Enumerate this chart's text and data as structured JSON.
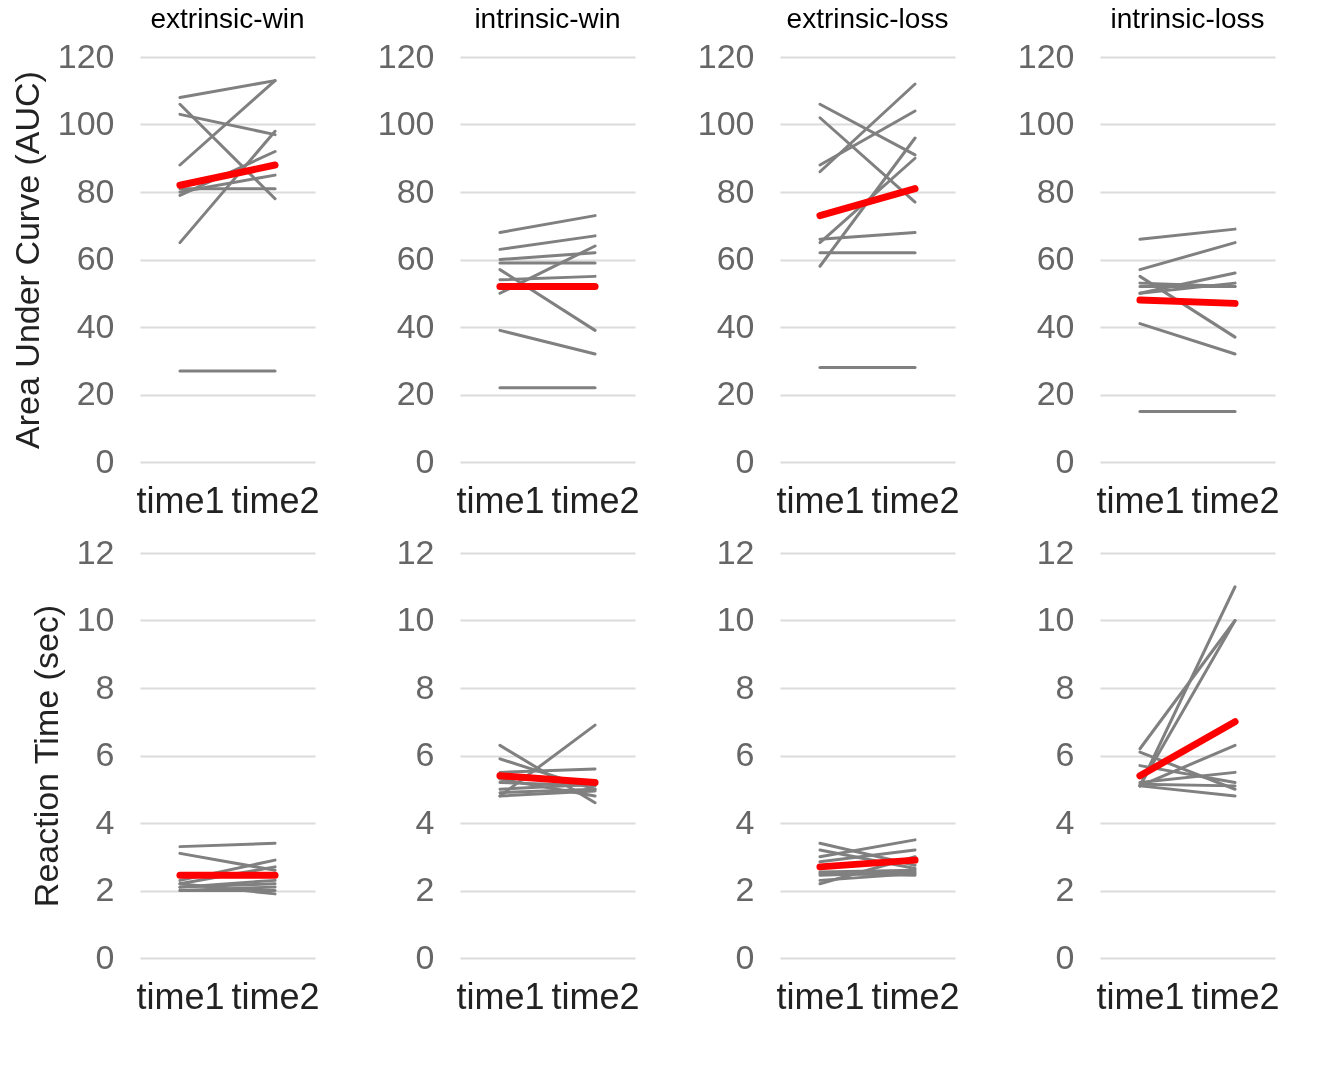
{
  "chart_data": [
    {
      "type": "line",
      "title": "extrinsic-win",
      "ylabel": "Area Under Curve (AUC)",
      "categories": [
        "time1",
        "time2"
      ],
      "ylim": [
        0,
        120
      ],
      "yticks": [
        0,
        20,
        40,
        60,
        80,
        100,
        120
      ],
      "grid": "y",
      "series": [
        {
          "color": "#808080",
          "values": [
            108,
            113
          ]
        },
        {
          "color": "#808080",
          "values": [
            106,
            78
          ]
        },
        {
          "color": "#808080",
          "values": [
            103,
            97
          ]
        },
        {
          "color": "#808080",
          "values": [
            88,
            113
          ]
        },
        {
          "color": "#808080",
          "values": [
            65,
            98
          ]
        },
        {
          "color": "#808080",
          "values": [
            79,
            92
          ]
        },
        {
          "color": "#808080",
          "values": [
            81,
            81
          ]
        },
        {
          "color": "#808080",
          "values": [
            80,
            85
          ]
        },
        {
          "color": "#808080",
          "values": [
            27,
            27
          ]
        },
        {
          "color": "#ff0000",
          "values": [
            82,
            88
          ]
        }
      ]
    },
    {
      "type": "line",
      "title": "intrinsic-win",
      "categories": [
        "time1",
        "time2"
      ],
      "ylim": [
        0,
        120
      ],
      "yticks": [
        0,
        20,
        40,
        60,
        80,
        100,
        120
      ],
      "grid": "y",
      "series": [
        {
          "color": "#808080",
          "values": [
            68,
            73
          ]
        },
        {
          "color": "#808080",
          "values": [
            63,
            67
          ]
        },
        {
          "color": "#808080",
          "values": [
            60,
            62
          ]
        },
        {
          "color": "#808080",
          "values": [
            59,
            59
          ]
        },
        {
          "color": "#808080",
          "values": [
            50,
            64
          ]
        },
        {
          "color": "#808080",
          "values": [
            57,
            39
          ]
        },
        {
          "color": "#808080",
          "values": [
            54,
            55
          ]
        },
        {
          "color": "#808080",
          "values": [
            39,
            32
          ]
        },
        {
          "color": "#808080",
          "values": [
            22,
            22
          ]
        },
        {
          "color": "#ff0000",
          "values": [
            52,
            52
          ]
        }
      ]
    },
    {
      "type": "line",
      "title": "extrinsic-loss",
      "categories": [
        "time1",
        "time2"
      ],
      "ylim": [
        0,
        120
      ],
      "yticks": [
        0,
        20,
        40,
        60,
        80,
        100,
        120
      ],
      "grid": "y",
      "series": [
        {
          "color": "#808080",
          "values": [
            106,
            91
          ]
        },
        {
          "color": "#808080",
          "values": [
            102,
            77
          ]
        },
        {
          "color": "#808080",
          "values": [
            86,
            112
          ]
        },
        {
          "color": "#808080",
          "values": [
            88,
            104
          ]
        },
        {
          "color": "#808080",
          "values": [
            65,
            90
          ]
        },
        {
          "color": "#808080",
          "values": [
            58,
            96
          ]
        },
        {
          "color": "#808080",
          "values": [
            66,
            68
          ]
        },
        {
          "color": "#808080",
          "values": [
            62,
            62
          ]
        },
        {
          "color": "#808080",
          "values": [
            28,
            28
          ]
        },
        {
          "color": "#ff0000",
          "values": [
            73,
            81
          ]
        }
      ]
    },
    {
      "type": "line",
      "title": "intrinsic-loss",
      "categories": [
        "time1",
        "time2"
      ],
      "ylim": [
        0,
        120
      ],
      "yticks": [
        0,
        20,
        40,
        60,
        80,
        100,
        120
      ],
      "grid": "y",
      "series": [
        {
          "color": "#808080",
          "values": [
            66,
            69
          ]
        },
        {
          "color": "#808080",
          "values": [
            57,
            65
          ]
        },
        {
          "color": "#808080",
          "values": [
            55,
            37
          ]
        },
        {
          "color": "#808080",
          "values": [
            53,
            52
          ]
        },
        {
          "color": "#808080",
          "values": [
            50,
            56
          ]
        },
        {
          "color": "#808080",
          "values": [
            50,
            53
          ]
        },
        {
          "color": "#808080",
          "values": [
            52,
            52
          ]
        },
        {
          "color": "#808080",
          "values": [
            41,
            32
          ]
        },
        {
          "color": "#808080",
          "values": [
            15,
            15
          ]
        },
        {
          "color": "#ff0000",
          "values": [
            48,
            47
          ]
        }
      ]
    },
    {
      "type": "line",
      "ylabel": "Reaction Time (sec)",
      "categories": [
        "time1",
        "time2"
      ],
      "ylim": [
        0,
        12
      ],
      "yticks": [
        0,
        2,
        4,
        6,
        8,
        10,
        12
      ],
      "grid": "y",
      "series": [
        {
          "color": "#808080",
          "values": [
            3.3,
            3.4
          ]
        },
        {
          "color": "#808080",
          "values": [
            3.1,
            2.6
          ]
        },
        {
          "color": "#808080",
          "values": [
            2.3,
            2.9
          ]
        },
        {
          "color": "#808080",
          "values": [
            2.2,
            2.7
          ]
        },
        {
          "color": "#808080",
          "values": [
            2.2,
            1.9
          ]
        },
        {
          "color": "#808080",
          "values": [
            2.0,
            2.0
          ]
        },
        {
          "color": "#808080",
          "values": [
            2.1,
            2.2
          ]
        },
        {
          "color": "#808080",
          "values": [
            2.1,
            2.3
          ]
        },
        {
          "color": "#808080",
          "values": [
            2.0,
            2.1
          ]
        },
        {
          "color": "#ff0000",
          "values": [
            2.45,
            2.45
          ]
        }
      ]
    },
    {
      "type": "line",
      "categories": [
        "time1",
        "time2"
      ],
      "ylim": [
        0,
        12
      ],
      "yticks": [
        0,
        2,
        4,
        6,
        8,
        10,
        12
      ],
      "grid": "y",
      "series": [
        {
          "color": "#808080",
          "values": [
            6.3,
            4.6
          ]
        },
        {
          "color": "#808080",
          "values": [
            5.9,
            5.0
          ]
        },
        {
          "color": "#808080",
          "values": [
            5.5,
            5.6
          ]
        },
        {
          "color": "#808080",
          "values": [
            4.8,
            6.9
          ]
        },
        {
          "color": "#808080",
          "values": [
            5.3,
            4.8
          ]
        },
        {
          "color": "#808080",
          "values": [
            5.2,
            5.1
          ]
        },
        {
          "color": "#808080",
          "values": [
            5.0,
            5.15
          ]
        },
        {
          "color": "#808080",
          "values": [
            4.9,
            5.0
          ]
        },
        {
          "color": "#808080",
          "values": [
            4.8,
            4.95
          ]
        },
        {
          "color": "#ff0000",
          "values": [
            5.4,
            5.2
          ]
        }
      ]
    },
    {
      "type": "line",
      "categories": [
        "time1",
        "time2"
      ],
      "ylim": [
        0,
        12
      ],
      "yticks": [
        0,
        2,
        4,
        6,
        8,
        10,
        12
      ],
      "grid": "y",
      "series": [
        {
          "color": "#808080",
          "values": [
            3.4,
            2.75
          ]
        },
        {
          "color": "#808080",
          "values": [
            3.2,
            2.65
          ]
        },
        {
          "color": "#808080",
          "values": [
            3.0,
            3.5
          ]
        },
        {
          "color": "#808080",
          "values": [
            2.85,
            3.2
          ]
        },
        {
          "color": "#808080",
          "values": [
            2.55,
            2.6
          ]
        },
        {
          "color": "#808080",
          "values": [
            2.45,
            2.55
          ]
        },
        {
          "color": "#808080",
          "values": [
            2.2,
            3.0
          ]
        },
        {
          "color": "#808080",
          "values": [
            2.3,
            2.5
          ]
        },
        {
          "color": "#808080",
          "values": [
            2.5,
            2.45
          ]
        },
        {
          "color": "#ff0000",
          "values": [
            2.7,
            2.9
          ]
        }
      ]
    },
    {
      "type": "line",
      "categories": [
        "time1",
        "time2"
      ],
      "ylim": [
        0,
        12
      ],
      "yticks": [
        0,
        2,
        4,
        6,
        8,
        10,
        12
      ],
      "grid": "y",
      "series": [
        {
          "color": "#808080",
          "values": [
            6.2,
            10
          ]
        },
        {
          "color": "#808080",
          "values": [
            5.1,
            11
          ]
        },
        {
          "color": "#808080",
          "values": [
            5.1,
            10
          ]
        },
        {
          "color": "#808080",
          "values": [
            5.1,
            6.3
          ]
        },
        {
          "color": "#808080",
          "values": [
            6.1,
            5.0
          ]
        },
        {
          "color": "#808080",
          "values": [
            5.7,
            5.2
          ]
        },
        {
          "color": "#808080",
          "values": [
            5.2,
            5.5
          ]
        },
        {
          "color": "#808080",
          "values": [
            5.15,
            5.1
          ]
        },
        {
          "color": "#808080",
          "values": [
            5.1,
            4.8
          ]
        },
        {
          "color": "#ff0000",
          "values": [
            5.4,
            7.0
          ]
        }
      ]
    }
  ]
}
